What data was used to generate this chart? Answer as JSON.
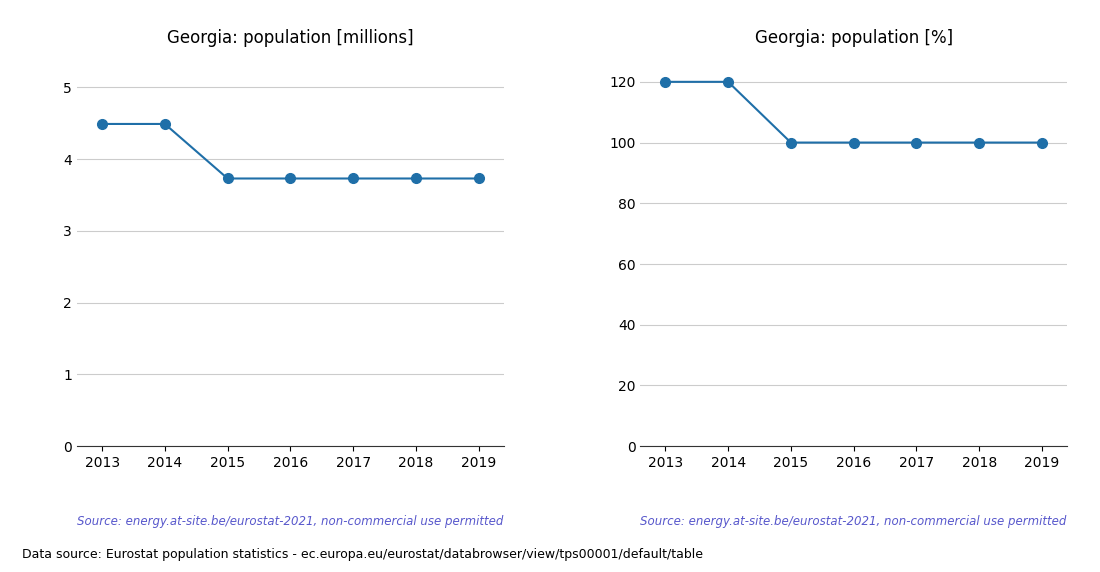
{
  "years": [
    2013,
    2014,
    2015,
    2016,
    2017,
    2018,
    2019
  ],
  "millions": [
    4.49,
    4.49,
    3.73,
    3.73,
    3.73,
    3.73,
    3.73
  ],
  "percent": [
    120.0,
    120.0,
    100.0,
    100.0,
    100.0,
    100.0,
    100.0
  ],
  "title_millions": "Georgia: population [millions]",
  "title_percent": "Georgia: population [%]",
  "source_text": "Source: energy.at-site.be/eurostat-2021, non-commercial use permitted",
  "footer_text": "Data source: Eurostat population statistics - ec.europa.eu/eurostat/databrowser/view/tps00001/default/table",
  "line_color": "#1f6fa8",
  "source_color": "#5858cc",
  "ylim_millions": [
    0,
    5.5
  ],
  "yticks_millions": [
    0,
    1,
    2,
    3,
    4,
    5
  ],
  "ylim_percent": [
    0,
    130
  ],
  "yticks_percent": [
    0,
    20,
    40,
    60,
    80,
    100,
    120
  ],
  "marker": "o",
  "markersize": 7,
  "linewidth": 1.5,
  "grid_color": "#aaaaaa",
  "grid_alpha": 0.6
}
